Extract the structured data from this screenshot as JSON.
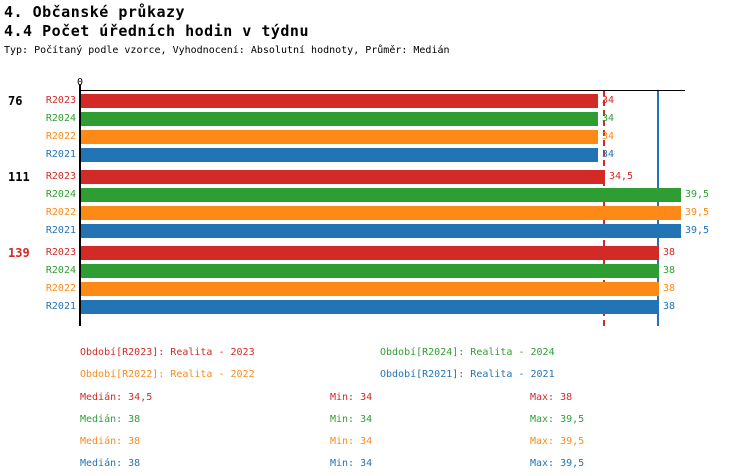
{
  "header": {
    "title_line1": "4. Občanské průkazy",
    "title_line2": "4.4 Počet úředních hodin v týdnu",
    "subtitle": "Typ: Počítaný podle vzorce, Vyhodnocení: Absolutní hodnoty, Průměr: Medián"
  },
  "chart_data": {
    "type": "bar",
    "orientation": "horizontal",
    "axis": {
      "origin_tick_label": "0",
      "xmin": 0,
      "xmax": 39.8,
      "grid": false
    },
    "series": [
      {
        "id": "R2023",
        "label": "R2023",
        "color": "#d22a26"
      },
      {
        "id": "R2024",
        "label": "R2024",
        "color": "#2f9e32"
      },
      {
        "id": "R2022",
        "label": "R2022",
        "color": "#fd8a16"
      },
      {
        "id": "R2021",
        "label": "R2021",
        "color": "#2274b5"
      }
    ],
    "groups": [
      {
        "label": "76",
        "label_color": "#000000",
        "values": [
          34,
          34,
          34,
          34
        ],
        "value_labels": [
          "34",
          "34",
          "34",
          "34"
        ]
      },
      {
        "label": "111",
        "label_color": "#000000",
        "values": [
          34.5,
          39.5,
          39.5,
          39.5
        ],
        "value_labels": [
          "34,5",
          "39,5",
          "39,5",
          "39,5"
        ]
      },
      {
        "label": "139",
        "label_color": "#d22a26",
        "values": [
          38,
          38,
          38,
          38
        ],
        "value_labels": [
          "38",
          "38",
          "38",
          "38"
        ]
      }
    ],
    "reference_lines": [
      {
        "name": "median-r2023-reference-line",
        "value": 34.5,
        "color": "#d22a26",
        "style": "dashed"
      },
      {
        "name": "median-r2021-reference-line",
        "value": 38,
        "color": "#2274b5",
        "style": "solid"
      }
    ]
  },
  "legend": {
    "items": [
      {
        "label": "Období[R2023]: Realita - 2023",
        "color": "#d22a26"
      },
      {
        "label": "Období[R2024]: Realita - 2024",
        "color": "#2f9e32"
      },
      {
        "label": "Období[R2022]: Realita - 2022",
        "color": "#fd8a16"
      },
      {
        "label": "Období[R2021]: Realita - 2021",
        "color": "#2274b5"
      }
    ]
  },
  "stats": {
    "rows": [
      {
        "color": "#d22a26",
        "median": "Medián: 34,5",
        "min": "Min: 34",
        "max": "Max: 38"
      },
      {
        "color": "#2f9e32",
        "median": "Medián: 38",
        "min": "Min: 34",
        "max": "Max: 39,5"
      },
      {
        "color": "#fd8a16",
        "median": "Medián: 38",
        "min": "Min: 34",
        "max": "Max: 39,5"
      },
      {
        "color": "#2274b5",
        "median": "Medián: 38",
        "min": "Min: 34",
        "max": "Max: 39,5"
      }
    ]
  }
}
